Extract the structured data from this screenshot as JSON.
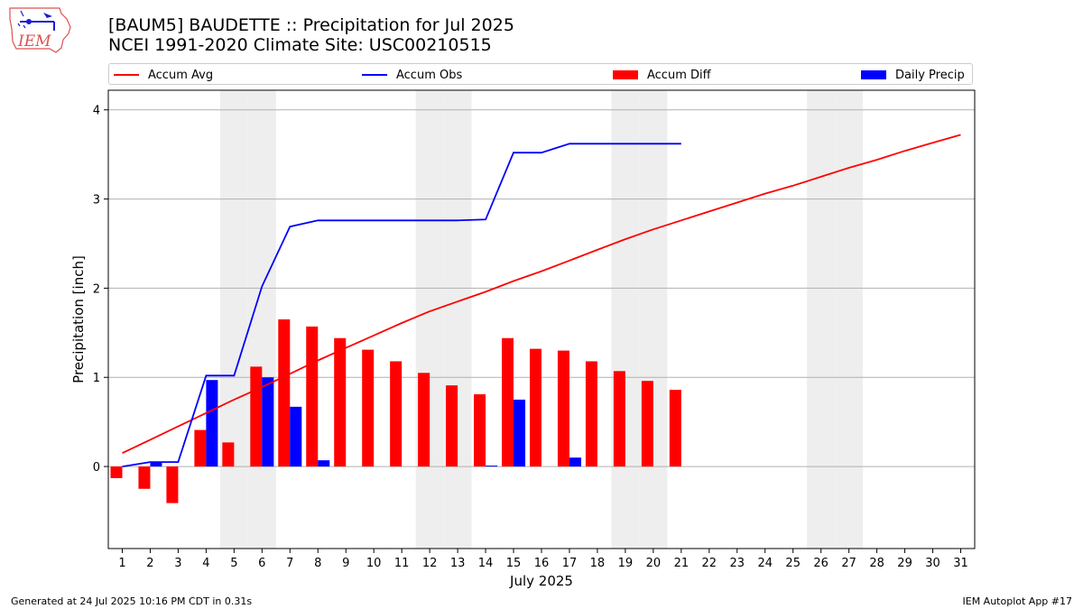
{
  "header": {
    "logo_text": "IEM",
    "title_line1": "[BAUM5] BAUDETTE :: Precipitation for Jul 2025",
    "title_line2": "NCEI 1991-2020 Climate Site: USC00210515"
  },
  "legend": {
    "accum_avg": "Accum Avg",
    "accum_obs": "Accum Obs",
    "accum_diff": "Accum Diff",
    "daily_precip": "Daily Precip"
  },
  "footer": {
    "generated": "Generated at 24 Jul 2025 10:16 PM CDT in 0.31s",
    "app": "IEM Autoplot App #17"
  },
  "colors": {
    "accum_avg": "#ff0000",
    "accum_obs": "#0000ff",
    "accum_diff": "#ff0000",
    "daily_precip": "#0000ff",
    "weekend_shade": "#eeeeee",
    "grid": "#b0b0b0"
  },
  "chart_data": {
    "type": "bar",
    "xlabel": "July 2025",
    "ylabel": "Precipitation [inch]",
    "xlim": [
      0.5,
      31.5
    ],
    "ylim": [
      -0.92,
      4.22
    ],
    "yticks": [
      0,
      1,
      2,
      3,
      4
    ],
    "xticks": [
      "1",
      "2",
      "3",
      "4",
      "5",
      "6",
      "7",
      "8",
      "9",
      "10",
      "11",
      "12",
      "13",
      "14",
      "15",
      "16",
      "17",
      "18",
      "19",
      "20",
      "21",
      "22",
      "23",
      "24",
      "25",
      "26",
      "27",
      "28",
      "29",
      "30",
      "31"
    ],
    "grid": "horizontal",
    "legend_position": "top",
    "shaded_days": [
      5,
      6,
      12,
      13,
      19,
      20,
      26,
      27
    ],
    "series": [
      {
        "name": "Accum Avg",
        "kind": "line",
        "x": [
          1,
          2,
          3,
          4,
          5,
          6,
          7,
          8,
          9,
          10,
          11,
          12,
          13,
          14,
          15,
          16,
          17,
          18,
          19,
          20,
          21,
          22,
          23,
          24,
          25,
          26,
          27,
          28,
          29,
          30,
          31
        ],
        "values": [
          0.15,
          0.3,
          0.45,
          0.6,
          0.75,
          0.89,
          1.04,
          1.19,
          1.33,
          1.47,
          1.61,
          1.74,
          1.85,
          1.96,
          2.08,
          2.19,
          2.31,
          2.43,
          2.55,
          2.66,
          2.76,
          2.86,
          2.96,
          3.06,
          3.15,
          3.25,
          3.35,
          3.44,
          3.54,
          3.63,
          3.72
        ]
      },
      {
        "name": "Accum Obs",
        "kind": "line",
        "x": [
          1,
          2,
          3,
          4,
          5,
          6,
          7,
          8,
          9,
          10,
          11,
          12,
          13,
          14,
          15,
          16,
          17,
          18,
          19,
          20,
          21
        ],
        "values": [
          0.0,
          0.05,
          0.05,
          1.02,
          1.02,
          2.02,
          2.69,
          2.76,
          2.76,
          2.76,
          2.76,
          2.76,
          2.76,
          2.77,
          3.52,
          3.52,
          3.62,
          3.62,
          3.62,
          3.62,
          3.62
        ]
      },
      {
        "name": "Accum Diff",
        "kind": "bar",
        "x": [
          1,
          2,
          3,
          4,
          5,
          6,
          7,
          8,
          9,
          10,
          11,
          12,
          13,
          14,
          15,
          16,
          17,
          18,
          19,
          20,
          21
        ],
        "values": [
          -0.13,
          -0.25,
          -0.41,
          0.41,
          0.27,
          1.12,
          1.65,
          1.57,
          1.44,
          1.31,
          1.18,
          1.05,
          0.91,
          0.81,
          1.44,
          1.32,
          1.3,
          1.18,
          1.07,
          0.96,
          0.86
        ]
      },
      {
        "name": "Daily Precip",
        "kind": "bar",
        "x": [
          1,
          2,
          3,
          4,
          5,
          6,
          7,
          8,
          9,
          10,
          11,
          12,
          13,
          14,
          15,
          16,
          17,
          18,
          19,
          20,
          21
        ],
        "values": [
          0.0,
          0.05,
          0.0,
          0.97,
          0.0,
          1.0,
          0.67,
          0.07,
          0.0,
          0.0,
          0.0,
          0.0,
          0.0,
          0.01,
          0.75,
          0.0,
          0.1,
          0.0,
          0.0,
          0.0,
          0.0
        ]
      }
    ]
  }
}
